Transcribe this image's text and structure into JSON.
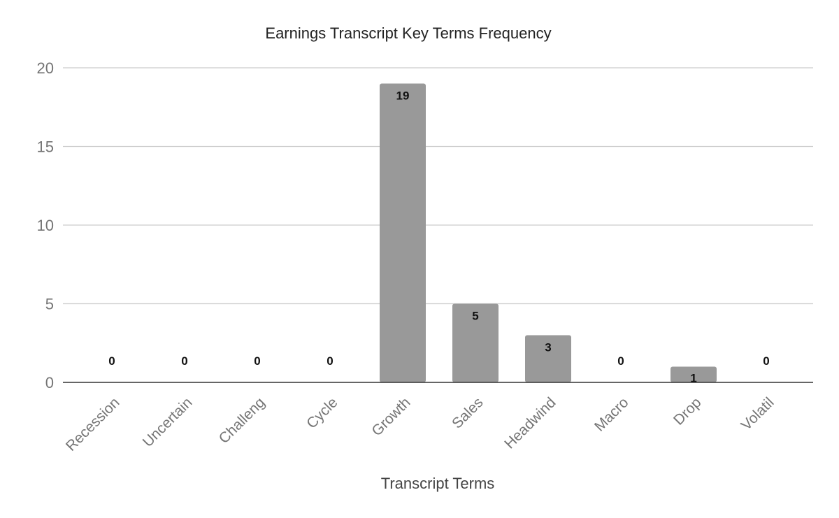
{
  "chart_data": {
    "type": "bar",
    "title": "Earnings Transcript Key Terms Frequency",
    "xlabel": "Transcript Terms",
    "ylabel": "",
    "categories": [
      "Recession",
      "Uncertain",
      "Challeng",
      "Cycle",
      "Growth",
      "Sales",
      "Headwind",
      "Macro",
      "Drop",
      "Volatil"
    ],
    "values": [
      0,
      0,
      0,
      0,
      19,
      5,
      3,
      0,
      1,
      0
    ],
    "ylim": [
      0,
      20
    ],
    "yticks": [
      0,
      5,
      10,
      15,
      20
    ],
    "grid": true,
    "legend": "none",
    "bar_color": "#999999"
  }
}
